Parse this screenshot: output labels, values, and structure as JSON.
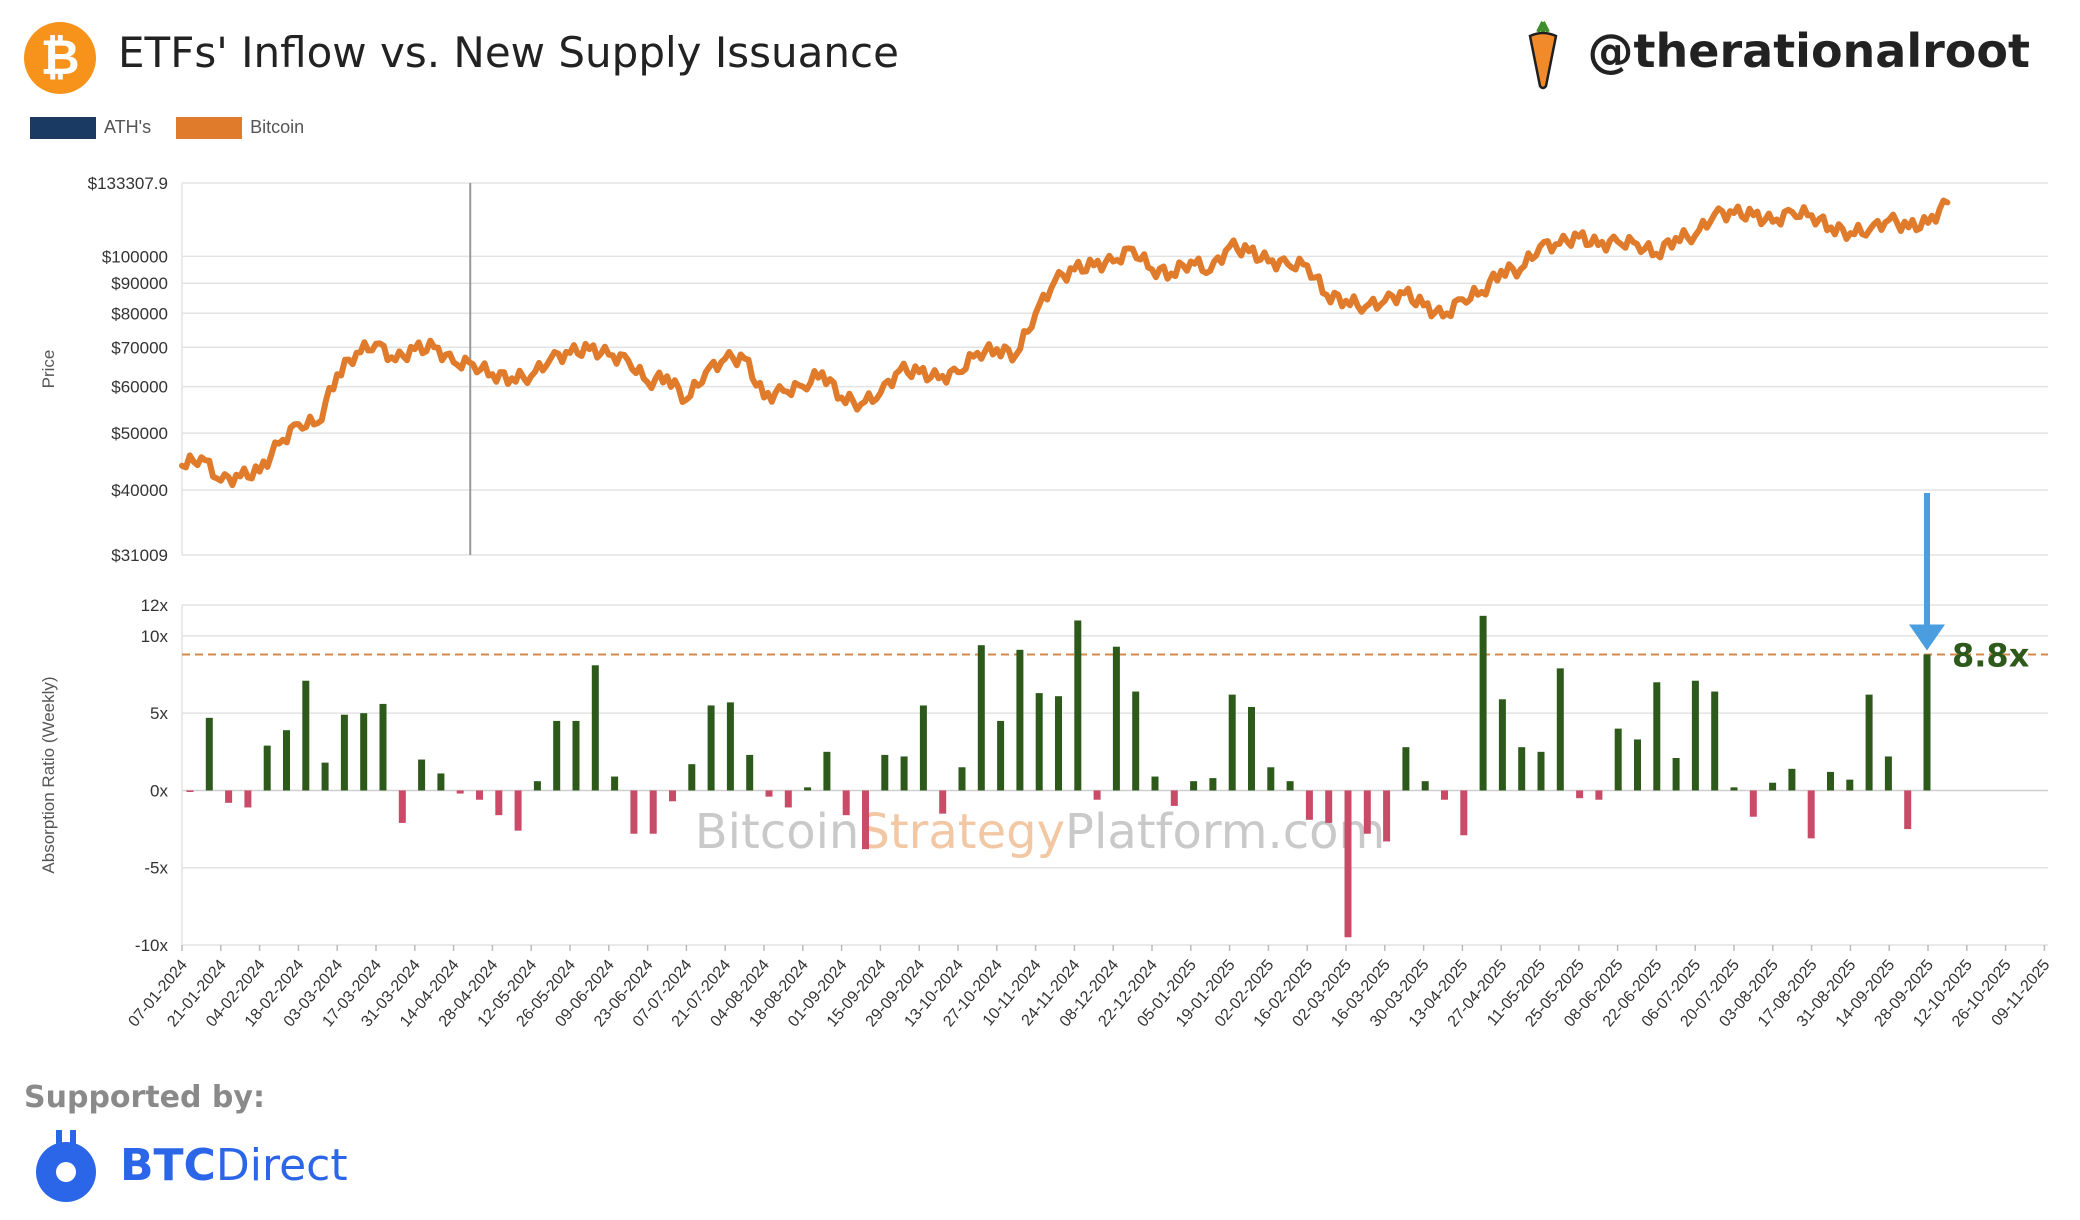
{
  "header": {
    "title": "ETFs' Inflow vs. New Supply Issuance",
    "handle": "@therationalroot",
    "btc_symbol": "₿"
  },
  "legend": [
    {
      "label": "ATH's",
      "color": "#1b3a63"
    },
    {
      "label": "Bitcoin",
      "color": "#e07b2c"
    }
  ],
  "footer": {
    "supported_by": "Supported by:",
    "brand_bold": "BTC",
    "brand_regular": "Direct"
  },
  "watermark": {
    "part1": "Bitcoin",
    "part2": "Strategy",
    "part3": "Platform.com"
  },
  "annotation": {
    "label": "8.8x",
    "value": 8.8,
    "color": "#2d5a1b",
    "arrow_color": "#4a9ee0"
  },
  "chart_data": [
    {
      "type": "line",
      "ylabel": "Price",
      "scale": "log",
      "ylim": [
        31009,
        133307.9
      ],
      "yticks": [
        {
          "value": 133307.9,
          "label": "$133307.9"
        },
        {
          "value": 100000,
          "label": "$100000"
        },
        {
          "value": 90000,
          "label": "$90000"
        },
        {
          "value": 80000,
          "label": "$80000"
        },
        {
          "value": 70000,
          "label": "$70000"
        },
        {
          "value": 60000,
          "label": "$60000"
        },
        {
          "value": 50000,
          "label": "$50000"
        },
        {
          "value": 40000,
          "label": "$40000"
        },
        {
          "value": 31009,
          "label": "$31009"
        }
      ],
      "vertical_marker": {
        "date": "2024-04-20"
      },
      "series": [
        {
          "name": "Bitcoin",
          "color": "#e07b2c",
          "points": [
            [
              "2024-01-07",
              44000
            ],
            [
              "2024-01-14",
              45500
            ],
            [
              "2024-01-21",
              41500
            ],
            [
              "2024-01-28",
              42200
            ],
            [
              "2024-02-04",
              43000
            ],
            [
              "2024-02-11",
              48000
            ],
            [
              "2024-02-18",
              51800
            ],
            [
              "2024-02-25",
              52000
            ],
            [
              "2024-03-03",
              63000
            ],
            [
              "2024-03-10",
              68500
            ],
            [
              "2024-03-17",
              71000
            ],
            [
              "2024-03-24",
              66500
            ],
            [
              "2024-03-31",
              69500
            ],
            [
              "2024-04-07",
              70000
            ],
            [
              "2024-04-14",
              66000
            ],
            [
              "2024-04-21",
              65500
            ],
            [
              "2024-04-28",
              63000
            ],
            [
              "2024-05-05",
              62000
            ],
            [
              "2024-05-12",
              62500
            ],
            [
              "2024-05-19",
              67000
            ],
            [
              "2024-05-26",
              68500
            ],
            [
              "2024-06-02",
              69500
            ],
            [
              "2024-06-09",
              68000
            ],
            [
              "2024-06-16",
              66500
            ],
            [
              "2024-06-23",
              61000
            ],
            [
              "2024-06-30",
              62500
            ],
            [
              "2024-07-07",
              57000
            ],
            [
              "2024-07-14",
              63500
            ],
            [
              "2024-07-21",
              67000
            ],
            [
              "2024-07-28",
              67000
            ],
            [
              "2024-08-04",
              57500
            ],
            [
              "2024-08-11",
              59000
            ],
            [
              "2024-08-18",
              60000
            ],
            [
              "2024-08-25",
              63500
            ],
            [
              "2024-09-01",
              57500
            ],
            [
              "2024-09-08",
              56000
            ],
            [
              "2024-09-15",
              58500
            ],
            [
              "2024-09-22",
              64000
            ],
            [
              "2024-09-29",
              63500
            ],
            [
              "2024-10-06",
              62000
            ],
            [
              "2024-10-13",
              63500
            ],
            [
              "2024-10-20",
              68500
            ],
            [
              "2024-10-27",
              69500
            ],
            [
              "2024-11-03",
              68000
            ],
            [
              "2024-11-10",
              80000
            ],
            [
              "2024-11-17",
              91000
            ],
            [
              "2024-11-24",
              95000
            ],
            [
              "2024-12-01",
              96500
            ],
            [
              "2024-12-08",
              98000
            ],
            [
              "2024-12-15",
              103000
            ],
            [
              "2024-12-22",
              95000
            ],
            [
              "2024-12-29",
              93500
            ],
            [
              "2025-01-05",
              98000
            ],
            [
              "2025-01-12",
              94500
            ],
            [
              "2025-01-19",
              104000
            ],
            [
              "2025-01-26",
              102000
            ],
            [
              "2025-02-02",
              98000
            ],
            [
              "2025-02-09",
              97000
            ],
            [
              "2025-02-16",
              96500
            ],
            [
              "2025-02-23",
              86000
            ],
            [
              "2025-03-02",
              84000
            ],
            [
              "2025-03-09",
              82000
            ],
            [
              "2025-03-16",
              84000
            ],
            [
              "2025-03-23",
              86500
            ],
            [
              "2025-03-30",
              82500
            ],
            [
              "2025-04-06",
              79000
            ],
            [
              "2025-04-13",
              84500
            ],
            [
              "2025-04-20",
              87000
            ],
            [
              "2025-04-27",
              94500
            ],
            [
              "2025-05-04",
              95000
            ],
            [
              "2025-05-11",
              104000
            ],
            [
              "2025-05-18",
              105000
            ],
            [
              "2025-05-25",
              108000
            ],
            [
              "2025-06-01",
              104500
            ],
            [
              "2025-06-08",
              106000
            ],
            [
              "2025-06-15",
              105000
            ],
            [
              "2025-06-22",
              101000
            ],
            [
              "2025-06-29",
              107500
            ],
            [
              "2025-07-06",
              108500
            ],
            [
              "2025-07-13",
              118000
            ],
            [
              "2025-07-20",
              118500
            ],
            [
              "2025-07-27",
              117500
            ],
            [
              "2025-08-03",
              114500
            ],
            [
              "2025-08-10",
              119000
            ],
            [
              "2025-08-17",
              117500
            ],
            [
              "2025-08-24",
              112000
            ],
            [
              "2025-08-31",
              109500
            ],
            [
              "2025-09-07",
              111000
            ],
            [
              "2025-09-14",
              115500
            ],
            [
              "2025-09-21",
              112000
            ],
            [
              "2025-09-28",
              114000
            ],
            [
              "2025-10-05",
              123500
            ]
          ]
        }
      ]
    },
    {
      "type": "bar",
      "ylabel": "Absorption Ratio (Weekly)",
      "ylim": [
        -10,
        12
      ],
      "yticks": [
        {
          "value": 12,
          "label": "12x"
        },
        {
          "value": 10,
          "label": "10x"
        },
        {
          "value": 5,
          "label": "5x"
        },
        {
          "value": 0,
          "label": "0x"
        },
        {
          "value": -5,
          "label": "-5x"
        },
        {
          "value": -10,
          "label": "-10x"
        }
      ],
      "reference_line": {
        "value": 8.8,
        "color": "#d4894a"
      },
      "positive_color": "#2d5a1b",
      "negative_color": "#c94b68",
      "x_tick_labels": [
        "07-01-2024",
        "21-01-2024",
        "04-02-2024",
        "18-02-2024",
        "03-03-2024",
        "17-03-2024",
        "31-03-2024",
        "14-04-2024",
        "28-04-2024",
        "12-05-2024",
        "26-05-2024",
        "09-06-2024",
        "23-06-2024",
        "07-07-2024",
        "21-07-2024",
        "04-08-2024",
        "18-08-2024",
        "01-09-2024",
        "15-09-2024",
        "29-09-2024",
        "13-10-2024",
        "27-10-2024",
        "10-11-2024",
        "24-11-2024",
        "08-12-2024",
        "22-12-2024",
        "05-01-2025",
        "19-01-2025",
        "02-02-2025",
        "16-02-2025",
        "02-03-2025",
        "16-03-2025",
        "30-03-2025",
        "13-04-2025",
        "27-04-2025",
        "11-05-2025",
        "25-05-2025",
        "08-06-2025",
        "22-06-2025",
        "06-07-2025",
        "20-07-2025",
        "03-08-2025",
        "17-08-2025",
        "31-08-2025",
        "14-09-2025",
        "28-09-2025",
        "12-10-2025",
        "26-10-2025",
        "09-11-2025"
      ],
      "values": [
        -0.1,
        4.7,
        -0.8,
        -1.1,
        2.9,
        3.9,
        7.1,
        1.8,
        4.9,
        5.0,
        5.6,
        -2.1,
        2.0,
        1.1,
        -0.2,
        -0.6,
        -1.6,
        -2.6,
        0.6,
        4.5,
        4.5,
        8.1,
        0.9,
        -2.8,
        -2.8,
        -0.7,
        1.7,
        5.5,
        5.7,
        2.3,
        -0.4,
        -1.1,
        0.2,
        2.5,
        -1.6,
        -3.8,
        2.3,
        2.2,
        5.5,
        -1.5,
        1.5,
        9.4,
        4.5,
        9.1,
        6.3,
        6.1,
        11.0,
        -0.6,
        9.3,
        6.4,
        0.9,
        -1.0,
        0.6,
        0.8,
        6.2,
        5.4,
        1.5,
        0.6,
        -1.9,
        -2.1,
        -9.5,
        -2.8,
        -3.3,
        2.8,
        0.6,
        -0.6,
        -2.9,
        11.3,
        5.9,
        2.8,
        2.5,
        7.9,
        -0.5,
        -0.6,
        4.0,
        3.3,
        7.0,
        2.1,
        7.1,
        6.4,
        0.2,
        -1.7,
        0.5,
        1.4,
        -3.1,
        1.2,
        0.7,
        6.2,
        2.2,
        -2.5,
        8.8
      ]
    }
  ]
}
